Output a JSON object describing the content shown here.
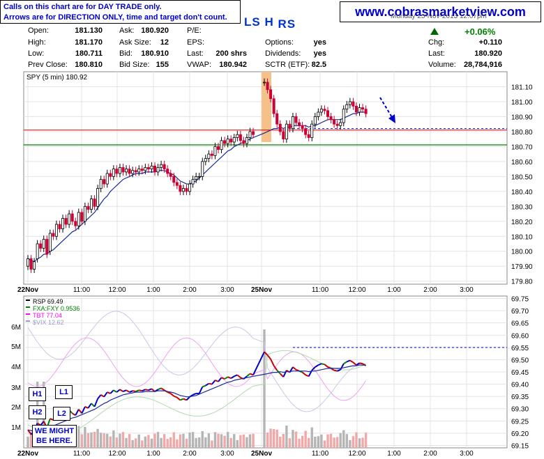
{
  "notice": {
    "line1": "Calls on this chart are for DAY TRADE only.",
    "line2": "Arrows are for DIRECTION ONLY, time and target don't count."
  },
  "site": "www.cobrasmarketview.com",
  "ticker_label": {
    "a": "LS",
    "b": "H",
    "c": "RS"
  },
  "quote": {
    "date": "Monday 25-Nov-2013 12:07pm",
    "open_label": "Open:",
    "open": "181.130",
    "high_label": "High:",
    "high": "181.170",
    "low_label": "Low:",
    "low": "180.711",
    "prev_label": "Prev Close:",
    "prev": "180.810",
    "ask_label": "Ask:",
    "ask": "180.920",
    "asksize_label": "Ask Size:",
    "asksize": "12",
    "bid_label": "Bid:",
    "bid": "180.910",
    "bidsize_label": "Bid Size:",
    "bidsize": "155",
    "pe_label": "P/E:",
    "eps_label": "EPS:",
    "last_label": "Last:",
    "last_shrs": "200 shrs",
    "vwap_label": "VWAP:",
    "vwap": "180.942",
    "options_label": "Options:",
    "options": "yes",
    "dividends_label": "Dividends:",
    "dividends": "yes",
    "sctr_label": "SCTR (ETF):",
    "sctr": "82.5",
    "chg_pct": "+0.06%",
    "chg_label": "Chg:",
    "chg": "+0.110",
    "last2_label": "Last:",
    "last2": "180.920",
    "volume_label": "Volume:",
    "volume": "28,784,916"
  },
  "annotations": {
    "h1": "H1",
    "l1": "L1",
    "h2": "H2",
    "l2": "L2",
    "might_line1": "WE MIGHT",
    "might_line2": "BE HERE."
  },
  "colors": {
    "up": "#000000",
    "down": "#cc0033",
    "ma": "#1a2a9a",
    "hline_red": "#cc0000",
    "hline_green": "#008000",
    "hline_blue": "#0000cc",
    "highlight": "#f5c08a"
  },
  "chart_data": [
    {
      "type": "candlestick",
      "title": "SPY (5 min) 180.92",
      "x_tick_labels": [
        "22Nov",
        "11:00",
        "12:00",
        "1:00",
        "2:00",
        "3:00",
        "25Nov",
        "11:00",
        "12:00",
        "1:00",
        "2:00",
        "3:00"
      ],
      "y_tick_labels": [
        "181.10",
        "181.00",
        "180.90",
        "180.80",
        "180.70",
        "180.60",
        "180.50",
        "180.40",
        "180.30",
        "180.20",
        "180.10",
        "180.00",
        "179.90",
        "179.80"
      ],
      "ylim": [
        179.78,
        181.2
      ],
      "hlines": [
        {
          "value": 180.81,
          "color": "red"
        },
        {
          "value": 180.711,
          "color": "green"
        },
        {
          "value": 180.82,
          "color": "blue-dashed"
        }
      ],
      "close": [
        179.95,
        179.88,
        179.93,
        180.05,
        180.02,
        180.08,
        179.98,
        180.12,
        180.1,
        180.18,
        180.15,
        180.22,
        180.18,
        180.25,
        180.2,
        180.17,
        180.26,
        180.2,
        180.3,
        180.28,
        180.35,
        180.3,
        180.42,
        180.48,
        180.45,
        180.52,
        180.5,
        180.55,
        180.52,
        180.56,
        180.53,
        180.55,
        180.52,
        180.54,
        180.53,
        180.55,
        180.54,
        180.56,
        180.55,
        180.57,
        180.53,
        180.56,
        180.58,
        180.55,
        180.52,
        180.5,
        180.46,
        180.44,
        180.4,
        180.42,
        180.4,
        180.45,
        180.48,
        180.5,
        180.5,
        180.6,
        180.62,
        180.65,
        180.64,
        180.7,
        180.68,
        180.74,
        180.72,
        180.75,
        180.73,
        180.76,
        180.78,
        180.74,
        180.72,
        180.76,
        180.8,
        180.78,
        181.13,
        181.08,
        181.02,
        180.92,
        180.85,
        180.8,
        180.75,
        180.85,
        180.82,
        180.9,
        180.86,
        180.84,
        180.82,
        180.78,
        180.76,
        180.85,
        180.9,
        180.93,
        180.95,
        180.94,
        180.9,
        180.88,
        180.85,
        180.84,
        180.86,
        180.95,
        180.98,
        181.0,
        180.97,
        180.93,
        180.96,
        180.95,
        180.92
      ],
      "open": [
        179.9,
        179.95,
        179.88,
        179.95,
        180.05,
        180.02,
        180.08,
        180.0,
        180.12,
        180.1,
        180.18,
        180.15,
        180.22,
        180.18,
        180.25,
        180.2,
        180.17,
        180.26,
        180.2,
        180.3,
        180.28,
        180.35,
        180.3,
        180.42,
        180.48,
        180.45,
        180.52,
        180.5,
        180.55,
        180.52,
        180.56,
        180.53,
        180.55,
        180.52,
        180.54,
        180.53,
        180.55,
        180.54,
        180.56,
        180.55,
        180.57,
        180.53,
        180.56,
        180.58,
        180.55,
        180.52,
        180.5,
        180.46,
        180.44,
        180.4,
        180.42,
        180.4,
        180.45,
        180.48,
        180.5,
        180.5,
        180.6,
        180.62,
        180.65,
        180.64,
        180.7,
        180.68,
        180.74,
        180.72,
        180.75,
        180.73,
        180.76,
        180.78,
        180.74,
        180.72,
        180.76,
        180.8,
        181.13,
        181.13,
        181.08,
        181.02,
        180.92,
        180.85,
        180.8,
        180.75,
        180.85,
        180.82,
        180.9,
        180.86,
        180.84,
        180.82,
        180.78,
        180.76,
        180.85,
        180.9,
        180.93,
        180.95,
        180.94,
        180.9,
        180.88,
        180.85,
        180.84,
        180.86,
        180.95,
        180.98,
        181.0,
        180.97,
        180.93,
        180.96,
        180.95
      ],
      "ma": [
        179.95,
        179.94,
        179.93,
        179.95,
        179.96,
        179.98,
        179.98,
        180.0,
        180.01,
        180.03,
        180.05,
        180.07,
        180.09,
        180.11,
        180.13,
        180.14,
        180.16,
        180.18,
        180.2,
        180.22,
        180.24,
        180.26,
        180.29,
        180.32,
        180.35,
        180.37,
        180.4,
        180.42,
        180.44,
        180.46,
        180.48,
        180.49,
        180.5,
        180.51,
        180.52,
        180.52,
        180.52,
        180.53,
        180.53,
        180.53,
        180.53,
        180.54,
        180.54,
        180.54,
        180.53,
        180.52,
        180.51,
        180.49,
        180.47,
        180.46,
        180.45,
        180.45,
        180.46,
        180.47,
        180.49,
        180.51,
        180.53,
        180.55,
        180.57,
        180.59,
        180.61,
        180.63,
        180.65,
        180.67,
        180.68,
        180.7,
        180.71,
        180.72,
        180.73,
        180.74,
        180.75,
        180.76,
        180.79,
        180.8,
        180.81,
        180.82,
        180.82,
        180.83,
        180.82,
        180.83,
        180.83,
        180.84,
        180.84,
        180.84,
        180.84,
        180.84,
        180.83,
        180.84,
        180.84,
        180.85,
        180.86,
        180.87,
        180.88,
        180.88,
        180.88,
        180.88,
        180.88,
        180.89,
        180.9,
        180.91,
        180.92,
        180.92,
        180.93,
        180.93,
        180.93
      ]
    },
    {
      "type": "line",
      "legend": [
        {
          "name": "RSP 69.49",
          "color": "#000000"
        },
        {
          "name": "FXA:FXY 0.9536",
          "color": "#008000"
        },
        {
          "name": "TBT 77.04",
          "color": "#ff00ff"
        },
        {
          "name": "$VIX 12.62",
          "color": "#9999cc"
        }
      ],
      "x_tick_labels": [
        "22Nov",
        "11:00",
        "12:00",
        "1:00",
        "2:00",
        "3:00",
        "25Nov",
        "11:00",
        "12:00",
        "1:00",
        "2:00",
        "3:00"
      ],
      "y_tick_labels": [
        "69.75",
        "69.70",
        "69.65",
        "69.60",
        "69.55",
        "69.50",
        "69.45",
        "69.40",
        "69.35",
        "69.30",
        "69.25",
        "69.20",
        "69.15"
      ],
      "volume_tick_labels": [
        "6M",
        "5M",
        "4M",
        "3M",
        "2M",
        "1M"
      ],
      "ylim": [
        69.14,
        69.76
      ],
      "hline": 69.55
    }
  ]
}
